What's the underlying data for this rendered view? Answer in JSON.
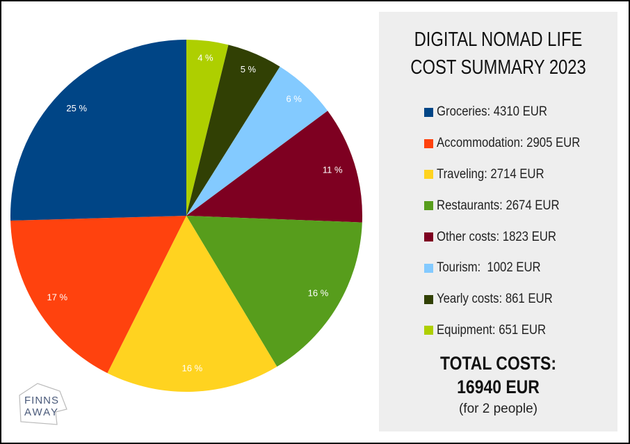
{
  "chart_data": {
    "type": "pie",
    "title": "DIGITAL NOMAD LIFE COST SUMMARY 2023",
    "title_lines": [
      "DIGITAL NOMAD LIFE",
      "COST SUMMARY 2023"
    ],
    "unit": "EUR",
    "legend_position": "right",
    "slices": [
      {
        "name": "Equipment",
        "value": 651,
        "percent_label": "4 %",
        "color": "#aecf00",
        "legend": "Equipment: 651 EUR"
      },
      {
        "name": "Yearly costs",
        "value": 861,
        "percent_label": "5 %",
        "color": "#314004",
        "legend": "Yearly costs: 861 EUR"
      },
      {
        "name": "Tourism",
        "value": 1002,
        "percent_label": "6 %",
        "color": "#83caff",
        "legend": "Tourism:  1002 EUR"
      },
      {
        "name": "Other costs",
        "value": 1823,
        "percent_label": "11 %",
        "color": "#7e0021",
        "legend": "Other costs: 1823 EUR"
      },
      {
        "name": "Restaurants",
        "value": 2674,
        "percent_label": "16 %",
        "color": "#579d1c",
        "legend": "Restaurants: 2674 EUR"
      },
      {
        "name": "Traveling",
        "value": 2714,
        "percent_label": "16 %",
        "color": "#ffd320",
        "legend": "Traveling: 2714 EUR"
      },
      {
        "name": "Accommodation",
        "value": 2905,
        "percent_label": "17 %",
        "color": "#ff420e",
        "legend": "Accommodation: 2905 EUR"
      },
      {
        "name": "Groceries",
        "value": 4310,
        "percent_label": "25 %",
        "color": "#004586",
        "legend": "Groceries: 4310 EUR"
      }
    ],
    "legend_order": [
      "Groceries",
      "Accommodation",
      "Traveling",
      "Restaurants",
      "Other costs",
      "Tourism",
      "Yearly costs",
      "Equipment"
    ]
  },
  "summary": {
    "total_line1": "TOTAL COSTS:",
    "total_line2": "16940 EUR",
    "note": "(for 2 people)"
  },
  "logo": {
    "text_line1": "FINNS",
    "text_line2": "AWAY"
  }
}
